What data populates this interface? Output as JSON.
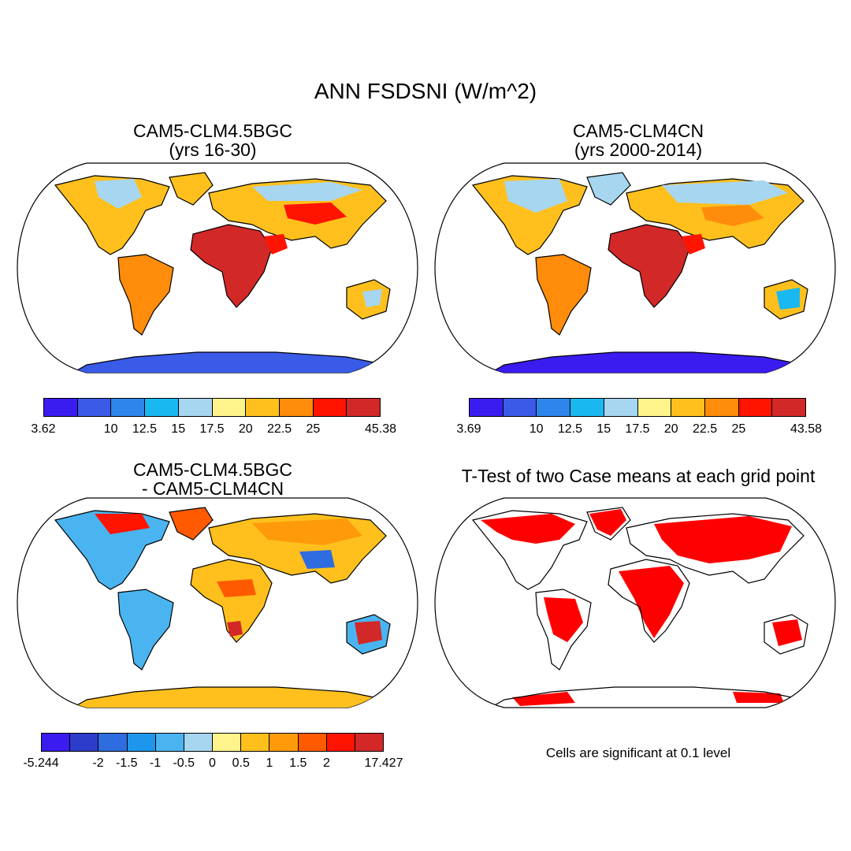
{
  "title": "ANN FSDSNI (W/m^2)",
  "panels": [
    {
      "title_line1": "CAM5-CLM4.5BGC",
      "title_line2": "(yrs 16-30)"
    },
    {
      "title_line1": "CAM5-CLM4CN",
      "title_line2": "(yrs 2000-2014)"
    },
    {
      "title_line1": "CAM5-CLM4.5BGC",
      "title_line2": "- CAM5-CLM4CN"
    },
    {
      "title_line1": "T-Test of two Case means at each grid point",
      "title_line2": ""
    }
  ],
  "colorbars": [
    {
      "colors": [
        "#3a1cf0",
        "#3a5ae8",
        "#2e86ec",
        "#1ab8f0",
        "#a6d6f0",
        "#fff48c",
        "#ffc01e",
        "#ff8c0a",
        "#ff1400",
        "#d22828"
      ],
      "labels": [
        "3.62",
        "10",
        "12.5",
        "15",
        "17.5",
        "20",
        "22.5",
        "25",
        "45.38"
      ],
      "label_boundaries": [
        0,
        2,
        3,
        4,
        5,
        6,
        7,
        8,
        10
      ]
    },
    {
      "colors": [
        "#3a1cf0",
        "#3a5ae8",
        "#2e86ec",
        "#1ab8f0",
        "#a6d6f0",
        "#fff48c",
        "#ffc01e",
        "#ff8c0a",
        "#ff1400",
        "#d22828"
      ],
      "labels": [
        "3.69",
        "10",
        "12.5",
        "15",
        "17.5",
        "20",
        "22.5",
        "25",
        "43.58"
      ],
      "label_boundaries": [
        0,
        2,
        3,
        4,
        5,
        6,
        7,
        8,
        10
      ]
    },
    {
      "colors": [
        "#3a1cf0",
        "#2e3ccc",
        "#2e6ce0",
        "#1e96ec",
        "#4ab4f0",
        "#a6d6f0",
        "#fff48c",
        "#ffc01e",
        "#ff9a0a",
        "#ff5a00",
        "#ff1400",
        "#d22828"
      ],
      "labels": [
        "-5.244",
        "-2",
        "-1.5",
        "-1",
        "-0.5",
        "0",
        "0.5",
        "1",
        "1.5",
        "2",
        "17.427"
      ],
      "label_boundaries": [
        0,
        2,
        3,
        4,
        5,
        6,
        7,
        8,
        9,
        10,
        12
      ]
    }
  ],
  "significance_note": "Cells are significant at 0.1 level",
  "significance_color": "#ff0000",
  "ocean_color": "#ffffff"
}
